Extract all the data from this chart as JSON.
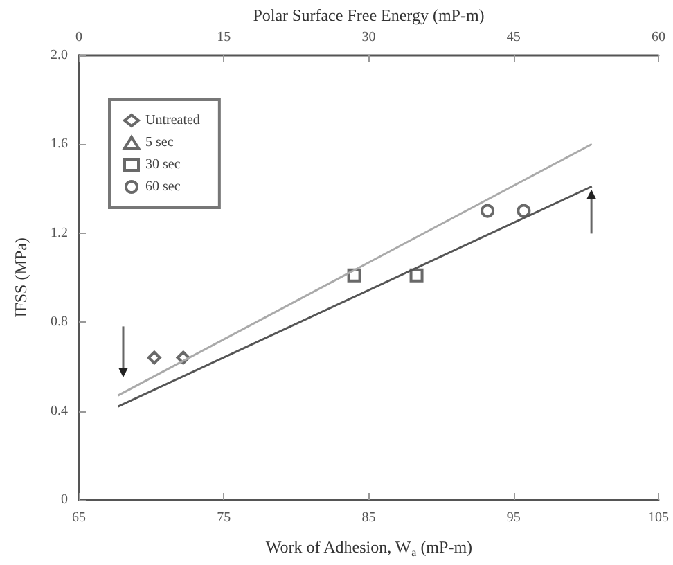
{
  "chart_data": {
    "type": "scatter",
    "xlabel": "Work of Adhesion, W$_{a}$ (mP-m)",
    "x2label": "Polar Surface Free Energy (mP-m)",
    "ylabel": "IFSS (MPa)",
    "xlim": [
      65,
      105
    ],
    "xticks": [
      65,
      75,
      85,
      95,
      105
    ],
    "x2lim": [
      0,
      60
    ],
    "x2ticks": [
      0,
      15,
      30,
      45,
      60
    ],
    "ylim": [
      0,
      2
    ],
    "yticks": [
      0,
      0.4,
      0.8,
      1.2,
      1.6,
      {
        "value": 2,
        "label": "2.0"
      }
    ],
    "grid": false,
    "legend": "top left",
    "series": [
      {
        "name": "Untreated",
        "color": "#444444",
        "marker": "diamond",
        "x": [
          70.2,
          72.2
        ],
        "values": [
          0.64,
          0.64
        ]
      },
      {
        "name": "5 sec",
        "color": "#444444",
        "marker": "triangle"
      },
      {
        "name": "30 sec",
        "color": "#444444",
        "marker": "square",
        "x": [
          84.0,
          88.3
        ],
        "values": [
          1.01,
          1.01
        ]
      },
      {
        "name": "60 sec",
        "color": "#444444",
        "marker": "circle",
        "x": [
          93.2,
          95.7
        ],
        "values": [
          1.3,
          1.3
        ]
      },
      {
        "type": "line",
        "color": "#aaaaaa",
        "marker": "none",
        "x": [
          67.7,
          100.4
        ],
        "values": [
          0.47,
          1.6
        ]
      },
      {
        "type": "line",
        "color": "#555555",
        "marker": "none",
        "x": [
          67.7,
          100.4
        ],
        "values": [
          0.42,
          1.41
        ]
      }
    ]
  }
}
